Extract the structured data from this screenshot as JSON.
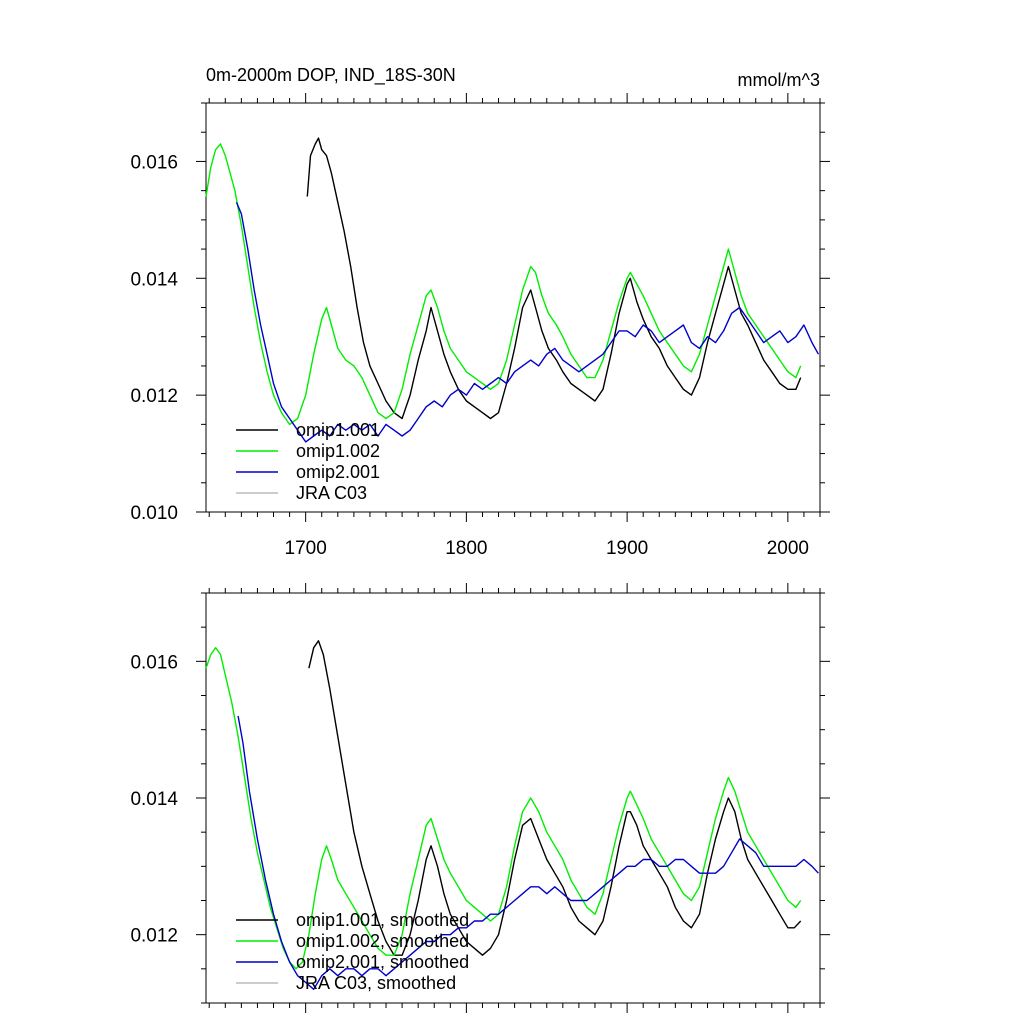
{
  "header": {
    "title": "0m-2000m DOP, IND_18S-30N",
    "units": "mmol/m^3"
  },
  "chart_data": [
    {
      "type": "line",
      "xlim": [
        1638,
        2020
      ],
      "ylim": [
        0.01,
        0.017
      ],
      "x_ticks": [
        1700,
        1800,
        1900,
        2000
      ],
      "y_ticks": [
        0.01,
        0.012,
        0.014,
        0.016
      ],
      "x_tick_labels": [
        "1700",
        "1800",
        "1900",
        "2000"
      ],
      "y_tick_labels": [
        "0.010",
        "0.012",
        "0.014",
        "0.016"
      ],
      "legend_position": "bottom-left",
      "series": [
        {
          "name": "omip1.001",
          "color": "#000000",
          "x": [
            1701,
            1703,
            1706,
            1708,
            1710,
            1713,
            1716,
            1720,
            1724,
            1728,
            1732,
            1736,
            1740,
            1745,
            1750,
            1755,
            1760,
            1765,
            1770,
            1775,
            1778,
            1782,
            1786,
            1790,
            1795,
            1800,
            1805,
            1810,
            1815,
            1820,
            1825,
            1830,
            1835,
            1840,
            1843,
            1847,
            1851,
            1856,
            1860,
            1865,
            1870,
            1875,
            1880,
            1885,
            1890,
            1895,
            1900,
            1902,
            1906,
            1910,
            1915,
            1920,
            1925,
            1930,
            1935,
            1940,
            1945,
            1950,
            1955,
            1960,
            1963,
            1967,
            1971,
            1975,
            1980,
            1985,
            1990,
            1995,
            2000,
            2005,
            2008
          ],
          "y": [
            0.0154,
            0.0161,
            0.0163,
            0.0164,
            0.0162,
            0.0161,
            0.0158,
            0.0153,
            0.0148,
            0.0142,
            0.0135,
            0.0129,
            0.0125,
            0.0122,
            0.0119,
            0.0117,
            0.0116,
            0.012,
            0.0126,
            0.0131,
            0.0135,
            0.0131,
            0.0127,
            0.0124,
            0.0121,
            0.0119,
            0.0118,
            0.0117,
            0.0116,
            0.0117,
            0.0122,
            0.0128,
            0.0135,
            0.0138,
            0.0135,
            0.0131,
            0.0128,
            0.0126,
            0.0124,
            0.0122,
            0.0121,
            0.012,
            0.0119,
            0.0121,
            0.0127,
            0.0134,
            0.0139,
            0.014,
            0.0136,
            0.0133,
            0.013,
            0.0128,
            0.0125,
            0.0123,
            0.0121,
            0.012,
            0.0123,
            0.0129,
            0.0134,
            0.0139,
            0.0142,
            0.0138,
            0.0134,
            0.0132,
            0.0129,
            0.0126,
            0.0124,
            0.0122,
            0.0121,
            0.0121,
            0.0123
          ]
        },
        {
          "name": "omip1.002",
          "color": "#00ee00",
          "x": [
            1638,
            1641,
            1644,
            1647,
            1650,
            1653,
            1656,
            1660,
            1664,
            1668,
            1672,
            1676,
            1680,
            1685,
            1690,
            1695,
            1700,
            1705,
            1710,
            1713,
            1716,
            1720,
            1725,
            1730,
            1735,
            1740,
            1745,
            1750,
            1755,
            1760,
            1765,
            1770,
            1775,
            1778,
            1782,
            1786,
            1790,
            1795,
            1800,
            1805,
            1810,
            1815,
            1820,
            1825,
            1830,
            1835,
            1840,
            1843,
            1847,
            1851,
            1856,
            1860,
            1865,
            1870,
            1875,
            1880,
            1885,
            1890,
            1895,
            1900,
            1902,
            1906,
            1910,
            1915,
            1920,
            1925,
            1930,
            1935,
            1940,
            1945,
            1950,
            1955,
            1960,
            1963,
            1967,
            1971,
            1975,
            1980,
            1985,
            1990,
            1995,
            2000,
            2005,
            2008
          ],
          "y": [
            0.0154,
            0.0159,
            0.0162,
            0.0163,
            0.0161,
            0.0158,
            0.0155,
            0.0149,
            0.0142,
            0.0135,
            0.0129,
            0.0124,
            0.012,
            0.0117,
            0.0115,
            0.0116,
            0.012,
            0.0127,
            0.0133,
            0.0135,
            0.0132,
            0.0128,
            0.0126,
            0.0125,
            0.0123,
            0.012,
            0.0117,
            0.0116,
            0.0117,
            0.0121,
            0.0127,
            0.0132,
            0.0137,
            0.0138,
            0.0135,
            0.0131,
            0.0128,
            0.0126,
            0.0124,
            0.0123,
            0.0122,
            0.0121,
            0.0122,
            0.0126,
            0.0132,
            0.0138,
            0.0142,
            0.0141,
            0.0137,
            0.0134,
            0.0132,
            0.013,
            0.0127,
            0.0125,
            0.0123,
            0.0123,
            0.0126,
            0.0131,
            0.0136,
            0.014,
            0.0141,
            0.0139,
            0.0137,
            0.0134,
            0.0131,
            0.0129,
            0.0127,
            0.0125,
            0.0124,
            0.0127,
            0.0132,
            0.0137,
            0.0142,
            0.0145,
            0.0141,
            0.0137,
            0.0134,
            0.0132,
            0.013,
            0.0128,
            0.0126,
            0.0124,
            0.0123,
            0.0125
          ]
        },
        {
          "name": "omip2.001",
          "color": "#0000cc",
          "x": [
            1657,
            1660,
            1664,
            1668,
            1672,
            1676,
            1680,
            1685,
            1690,
            1695,
            1700,
            1705,
            1710,
            1715,
            1720,
            1725,
            1730,
            1735,
            1740,
            1745,
            1750,
            1755,
            1760,
            1765,
            1770,
            1775,
            1780,
            1785,
            1790,
            1795,
            1800,
            1805,
            1810,
            1815,
            1820,
            1825,
            1830,
            1835,
            1840,
            1845,
            1850,
            1855,
            1860,
            1865,
            1870,
            1875,
            1880,
            1885,
            1890,
            1895,
            1900,
            1905,
            1910,
            1915,
            1920,
            1925,
            1930,
            1935,
            1940,
            1945,
            1950,
            1955,
            1960,
            1965,
            1970,
            1975,
            1980,
            1985,
            1990,
            1995,
            2000,
            2005,
            2010,
            2015,
            2019
          ],
          "y": [
            0.0153,
            0.0151,
            0.0145,
            0.0138,
            0.0132,
            0.0127,
            0.0122,
            0.0118,
            0.0116,
            0.0114,
            0.0112,
            0.0113,
            0.0114,
            0.0113,
            0.0115,
            0.0114,
            0.0115,
            0.0114,
            0.0115,
            0.0113,
            0.0115,
            0.0114,
            0.0113,
            0.0114,
            0.0116,
            0.0118,
            0.0119,
            0.0118,
            0.012,
            0.0121,
            0.012,
            0.0122,
            0.0121,
            0.0122,
            0.0123,
            0.0122,
            0.0124,
            0.0125,
            0.0126,
            0.0125,
            0.0127,
            0.0128,
            0.0126,
            0.0125,
            0.0124,
            0.0125,
            0.0126,
            0.0127,
            0.0129,
            0.0131,
            0.0131,
            0.013,
            0.0132,
            0.0131,
            0.0129,
            0.013,
            0.0131,
            0.0132,
            0.0129,
            0.0128,
            0.013,
            0.0129,
            0.0131,
            0.0134,
            0.0135,
            0.0133,
            0.0131,
            0.0129,
            0.013,
            0.0131,
            0.0129,
            0.013,
            0.0132,
            0.0129,
            0.0127
          ]
        },
        {
          "name": "JRA C03",
          "color": "#bbbbbb",
          "x": [],
          "y": []
        }
      ]
    },
    {
      "type": "line",
      "xlim": [
        1638,
        2020
      ],
      "ylim": [
        0.011,
        0.017
      ],
      "x_ticks": [
        1700,
        1800,
        1900,
        2000
      ],
      "y_ticks": [
        0.012,
        0.014,
        0.016
      ],
      "x_tick_labels": [],
      "y_tick_labels": [
        "0.012",
        "0.014",
        "0.016"
      ],
      "legend_position": "bottom-left",
      "series": [
        {
          "name": "omip1.001, smoothed",
          "color": "#000000",
          "x": [
            1702,
            1705,
            1708,
            1711,
            1715,
            1720,
            1725,
            1730,
            1735,
            1740,
            1745,
            1750,
            1755,
            1760,
            1765,
            1770,
            1775,
            1778,
            1782,
            1786,
            1790,
            1795,
            1800,
            1805,
            1810,
            1815,
            1820,
            1825,
            1830,
            1835,
            1840,
            1845,
            1850,
            1855,
            1860,
            1865,
            1870,
            1875,
            1880,
            1885,
            1890,
            1895,
            1900,
            1902,
            1906,
            1910,
            1915,
            1920,
            1925,
            1930,
            1935,
            1940,
            1945,
            1950,
            1955,
            1960,
            1963,
            1967,
            1971,
            1975,
            1980,
            1985,
            1990,
            1995,
            2000,
            2004,
            2008
          ],
          "y": [
            0.0159,
            0.0162,
            0.0163,
            0.0161,
            0.0156,
            0.0149,
            0.0142,
            0.0135,
            0.013,
            0.0126,
            0.0122,
            0.0119,
            0.0117,
            0.0117,
            0.012,
            0.0125,
            0.0131,
            0.0133,
            0.013,
            0.0126,
            0.0123,
            0.0121,
            0.0119,
            0.0118,
            0.0117,
            0.0118,
            0.012,
            0.0125,
            0.0131,
            0.0136,
            0.0137,
            0.0134,
            0.0131,
            0.0129,
            0.0127,
            0.0124,
            0.0122,
            0.0121,
            0.012,
            0.0122,
            0.0127,
            0.0133,
            0.0138,
            0.0138,
            0.0136,
            0.0133,
            0.0131,
            0.0129,
            0.0127,
            0.0124,
            0.0122,
            0.0121,
            0.0123,
            0.0129,
            0.0134,
            0.0138,
            0.014,
            0.0138,
            0.0134,
            0.0131,
            0.0129,
            0.0127,
            0.0125,
            0.0123,
            0.0121,
            0.0121,
            0.0122
          ]
        },
        {
          "name": "omip1.002, smoothed",
          "color": "#00ee00",
          "x": [
            1638,
            1641,
            1644,
            1647,
            1650,
            1654,
            1658,
            1662,
            1666,
            1670,
            1674,
            1678,
            1682,
            1686,
            1690,
            1694,
            1698,
            1702,
            1706,
            1710,
            1713,
            1716,
            1720,
            1725,
            1730,
            1735,
            1740,
            1745,
            1750,
            1755,
            1760,
            1765,
            1770,
            1775,
            1778,
            1782,
            1786,
            1790,
            1795,
            1800,
            1805,
            1810,
            1815,
            1820,
            1825,
            1830,
            1835,
            1840,
            1845,
            1850,
            1855,
            1860,
            1865,
            1870,
            1875,
            1880,
            1885,
            1890,
            1895,
            1900,
            1902,
            1906,
            1910,
            1915,
            1920,
            1925,
            1930,
            1935,
            1940,
            1945,
            1950,
            1955,
            1960,
            1963,
            1967,
            1971,
            1975,
            1980,
            1985,
            1990,
            1995,
            2000,
            2005,
            2008
          ],
          "y": [
            0.0159,
            0.0161,
            0.0162,
            0.0161,
            0.0158,
            0.0154,
            0.0149,
            0.0143,
            0.0137,
            0.0132,
            0.0128,
            0.0124,
            0.0121,
            0.0118,
            0.0116,
            0.0115,
            0.0116,
            0.012,
            0.0126,
            0.0131,
            0.0133,
            0.0131,
            0.0128,
            0.0126,
            0.0124,
            0.0122,
            0.012,
            0.0118,
            0.0117,
            0.0117,
            0.012,
            0.0126,
            0.0131,
            0.0136,
            0.0137,
            0.0134,
            0.0131,
            0.0129,
            0.0127,
            0.0125,
            0.0124,
            0.0123,
            0.0122,
            0.0123,
            0.0127,
            0.0133,
            0.0138,
            0.014,
            0.0138,
            0.0135,
            0.0133,
            0.0131,
            0.0128,
            0.0126,
            0.0124,
            0.0123,
            0.0126,
            0.0131,
            0.0136,
            0.014,
            0.0141,
            0.0139,
            0.0137,
            0.0134,
            0.0132,
            0.013,
            0.0128,
            0.0126,
            0.0125,
            0.0127,
            0.0132,
            0.0137,
            0.0141,
            0.0143,
            0.0141,
            0.0138,
            0.0135,
            0.0133,
            0.0131,
            0.0129,
            0.0127,
            0.0125,
            0.0124,
            0.0125
          ]
        },
        {
          "name": "omip2.001, smoothed",
          "color": "#0000cc",
          "x": [
            1658,
            1661,
            1665,
            1670,
            1675,
            1680,
            1685,
            1690,
            1695,
            1700,
            1705,
            1710,
            1715,
            1720,
            1725,
            1730,
            1735,
            1740,
            1745,
            1750,
            1755,
            1760,
            1765,
            1770,
            1775,
            1780,
            1785,
            1790,
            1795,
            1800,
            1805,
            1810,
            1815,
            1820,
            1825,
            1830,
            1835,
            1840,
            1845,
            1850,
            1855,
            1860,
            1865,
            1870,
            1875,
            1880,
            1885,
            1890,
            1895,
            1900,
            1905,
            1910,
            1915,
            1920,
            1925,
            1930,
            1935,
            1940,
            1945,
            1950,
            1955,
            1960,
            1965,
            1970,
            1975,
            1980,
            1985,
            1990,
            1995,
            2000,
            2005,
            2010,
            2015,
            2019
          ],
          "y": [
            0.0152,
            0.0148,
            0.0141,
            0.0134,
            0.0128,
            0.0123,
            0.0119,
            0.0116,
            0.0114,
            0.0113,
            0.0112,
            0.0114,
            0.0115,
            0.0114,
            0.0115,
            0.0115,
            0.0114,
            0.0115,
            0.0115,
            0.0114,
            0.0115,
            0.0116,
            0.0117,
            0.0118,
            0.0119,
            0.0119,
            0.012,
            0.012,
            0.0121,
            0.0121,
            0.0122,
            0.0122,
            0.0123,
            0.0123,
            0.0124,
            0.0125,
            0.0126,
            0.0127,
            0.0127,
            0.0126,
            0.0127,
            0.0126,
            0.0125,
            0.0125,
            0.0125,
            0.0126,
            0.0127,
            0.0128,
            0.0129,
            0.013,
            0.013,
            0.0131,
            0.0131,
            0.013,
            0.013,
            0.0131,
            0.0131,
            0.013,
            0.0129,
            0.0129,
            0.0129,
            0.013,
            0.0132,
            0.0134,
            0.0133,
            0.0132,
            0.013,
            0.013,
            0.013,
            0.013,
            0.013,
            0.0131,
            0.013,
            0.0129
          ]
        },
        {
          "name": "JRA C03, smoothed",
          "color": "#bbbbbb",
          "x": [],
          "y": []
        }
      ]
    }
  ]
}
